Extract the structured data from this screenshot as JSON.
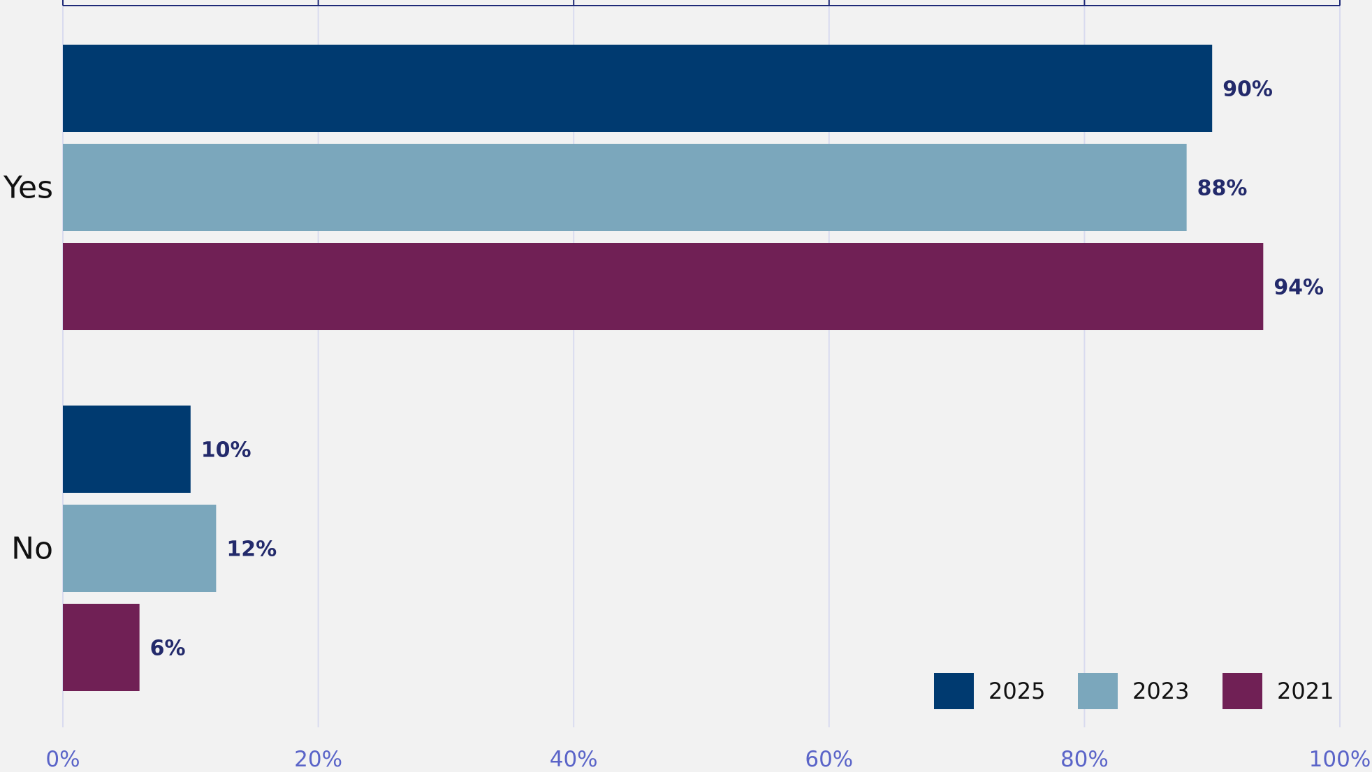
{
  "chart_data": {
    "type": "bar",
    "orientation": "horizontal",
    "categories": [
      "Yes",
      "No"
    ],
    "series": [
      {
        "name": "2025",
        "values": [
          90,
          10
        ],
        "color": "#003a70"
      },
      {
        "name": "2023",
        "values": [
          88,
          12
        ],
        "color": "#7ba7bc"
      },
      {
        "name": "2021",
        "values": [
          94,
          6
        ],
        "color": "#702055"
      }
    ],
    "data_labels": [
      [
        "90%",
        "10%"
      ],
      [
        "88%",
        "12%"
      ],
      [
        "94%",
        "6%"
      ]
    ],
    "x_ticks": [
      "0%",
      "20%",
      "40%",
      "60%",
      "80%",
      "100%"
    ],
    "xlim": [
      0,
      100
    ],
    "grid": true,
    "legend_position": "bottom-right",
    "colors": {
      "background": "#f2f2f2",
      "gridline": "#d9dbef",
      "frame": "#1f2a78",
      "tick_text": "#5a64c8",
      "data_label_text": "#232a6b"
    }
  }
}
